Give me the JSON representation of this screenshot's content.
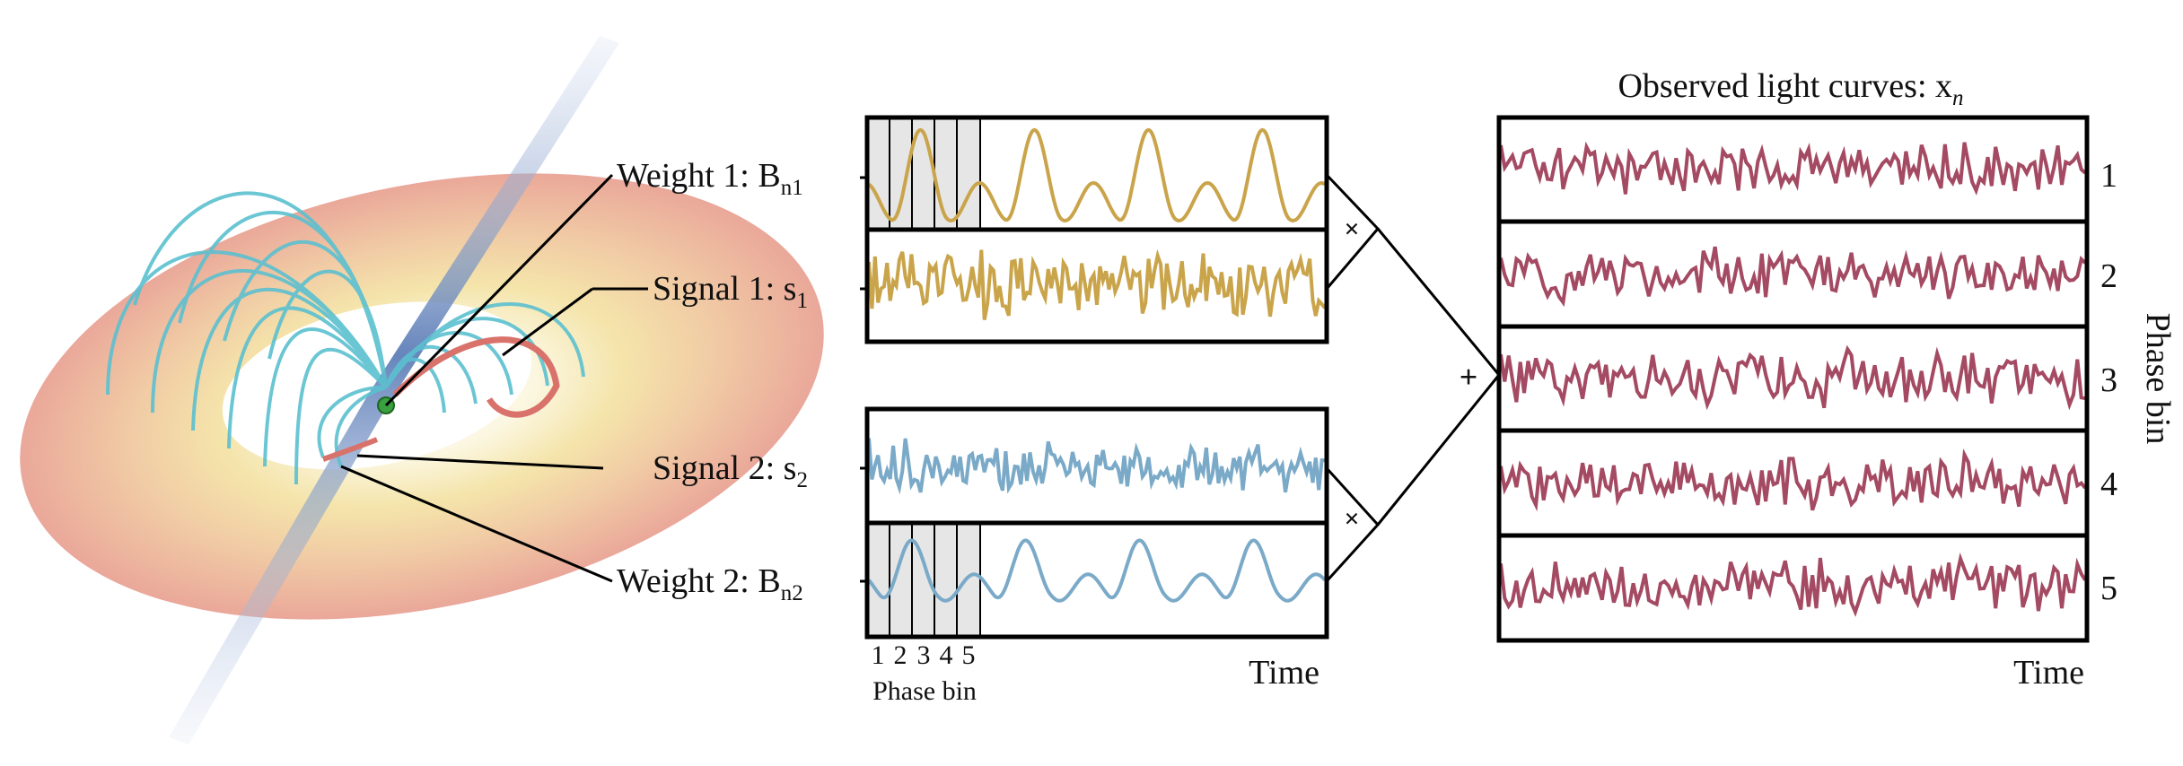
{
  "diagram": {
    "labels": {
      "weight1": "Weight 1: B",
      "weight1_sub": "n1",
      "signal1": "Signal 1: s",
      "signal1_sub": "1",
      "signal2": "Signal 2: s",
      "signal2_sub": "2",
      "weight2": "Weight 2: B",
      "weight2_sub": "n2"
    },
    "operators": {
      "multiply": "×",
      "add": "+"
    },
    "left_axis": {
      "bin_numbers": [
        "1",
        "2",
        "3",
        "4",
        "5"
      ],
      "bin_label": "Phase bin",
      "time_label": "Time"
    },
    "observed": {
      "title": "Observed light curves: x",
      "title_sub": "n",
      "row_labels": [
        "1",
        "2",
        "3",
        "4",
        "5"
      ],
      "side_label": "Phase bin",
      "time_label": "Time"
    },
    "colors": {
      "weight1": "#c9a44a",
      "signal1": "#c9a44a",
      "signal2": "#7aaac8",
      "weight2": "#7aaac8",
      "observed": "#a44a62",
      "disk_outer": "#e9a79a",
      "disk_inner": "#f5e7b0",
      "field_lines": "#5cc0d0",
      "jet": "#8aa0c8"
    }
  }
}
